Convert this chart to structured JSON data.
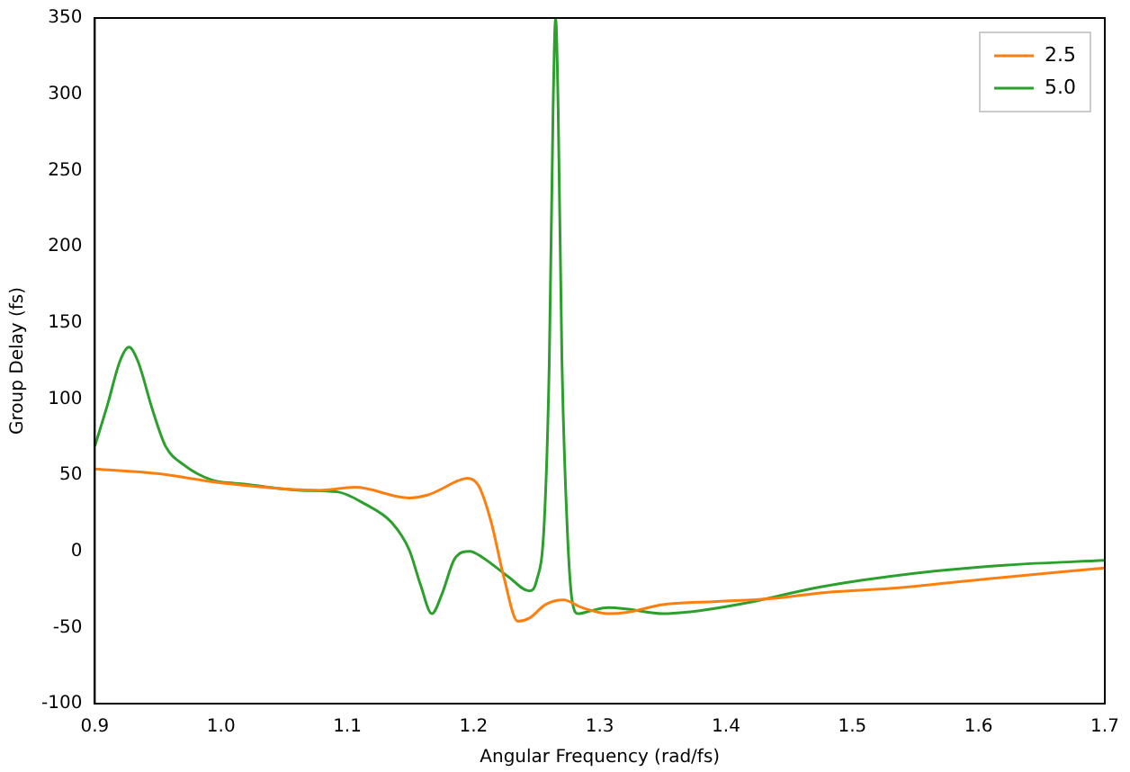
{
  "chart_data": {
    "type": "line",
    "xlabel": "Angular Frequency (rad/fs)",
    "ylabel": "Group Delay (fs)",
    "xlim": [
      0.9,
      1.7
    ],
    "xticks": [
      {
        "value": 0.9,
        "label": "0.9"
      },
      {
        "value": 1.0,
        "label": "1.0"
      },
      {
        "value": 1.1,
        "label": "1.1"
      },
      {
        "value": 1.2,
        "label": "1.2"
      },
      {
        "value": 1.3,
        "label": "1.3"
      },
      {
        "value": 1.4,
        "label": "1.4"
      },
      {
        "value": 1.5,
        "label": "1.5"
      },
      {
        "value": 1.6,
        "label": "1.6"
      },
      {
        "value": 1.7,
        "label": "1.7"
      }
    ],
    "ylim": [
      -100,
      350
    ],
    "yticks": [
      -100,
      -50,
      0,
      50,
      100,
      150,
      200,
      250,
      300,
      350
    ],
    "grid": false,
    "legend": "top right",
    "marker": "none",
    "line_style": "solid",
    "series": [
      {
        "name": "2.5",
        "color": "#ff7f0e",
        "x": [
          0.9,
          0.949,
          0.999,
          1.049,
          1.078,
          1.106,
          1.149,
          1.164,
          1.19,
          1.195,
          1.204,
          1.214,
          1.224,
          1.235,
          1.244,
          1.257,
          1.271,
          1.286,
          1.307,
          1.322,
          1.35,
          1.393,
          1.436,
          1.479,
          1.537,
          1.608,
          1.7
        ],
        "values": [
          54,
          51,
          45,
          41,
          40,
          42,
          35,
          37,
          47,
          48,
          43,
          19,
          -17,
          -46,
          -44,
          -35,
          -32,
          -37,
          -41,
          -40,
          -35,
          -33,
          -31,
          -27,
          -24,
          -18,
          -11
        ]
      },
      {
        "name": "5.0",
        "color": "#2ca02c",
        "x": [
          0.9,
          0.91,
          0.92,
          0.927,
          0.934,
          0.946,
          0.956,
          0.97,
          0.992,
          1.02,
          1.063,
          1.092,
          1.114,
          1.135,
          1.149,
          1.158,
          1.167,
          1.175,
          1.185,
          1.197,
          1.207,
          1.228,
          1.244,
          1.25,
          1.256,
          1.26,
          1.263,
          1.265,
          1.267,
          1.27,
          1.274,
          1.278,
          1.283,
          1.293,
          1.307,
          1.322,
          1.35,
          1.379,
          1.422,
          1.465,
          1.508,
          1.565,
          1.623,
          1.7
        ],
        "values": [
          69,
          96,
          125,
          134,
          125,
          92,
          69,
          57,
          47,
          44,
          40,
          39,
          31,
          19,
          1,
          -22,
          -41,
          -28,
          -5,
          0,
          -4,
          -17,
          -26,
          -19,
          19,
          125,
          291,
          350,
          291,
          125,
          19,
          -32,
          -41,
          -39,
          -37,
          -38,
          -41,
          -39,
          -33,
          -25,
          -19,
          -13,
          -9,
          -6
        ]
      }
    ]
  }
}
